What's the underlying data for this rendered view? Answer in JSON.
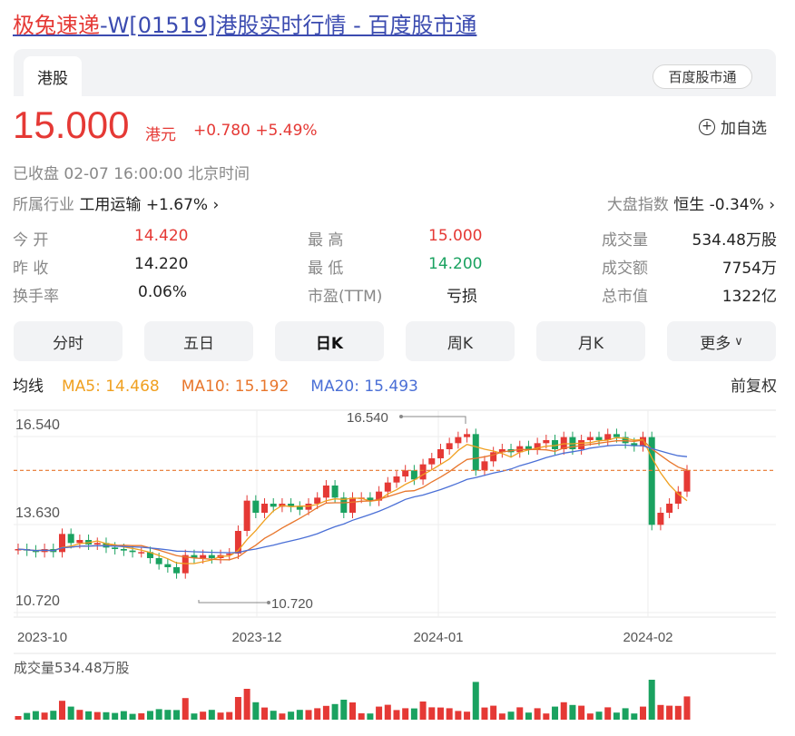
{
  "page": {
    "title_highlight": "极兔速递",
    "title_rest": "-W[01519]港股实时行情 - 百度股市通"
  },
  "tabs": {
    "active": "港股",
    "source_badge": "百度股市通"
  },
  "quote": {
    "price": "15.000",
    "unit": "港元",
    "change": "+0.780 +5.49%",
    "add_watchlist": "加自选",
    "status": "已收盘  02-07 16:00:00  北京时间"
  },
  "industry": {
    "label": "所属行业",
    "name": "工用运输",
    "change": "+1.67%"
  },
  "index": {
    "label": "大盘指数",
    "name": "恒生",
    "change": "-0.34%"
  },
  "stats": {
    "open_label": "今  开",
    "open": "14.420",
    "prev_label": "昨  收",
    "prev": "14.220",
    "turnover_label": "换手率",
    "turnover": "0.06%",
    "high_label": "最  高",
    "high": "15.000",
    "low_label": "最  低",
    "low": "14.200",
    "pe_label": "市盈(TTM)",
    "pe": "亏损",
    "vol_label": "成交量",
    "vol": "534.48万股",
    "amt_label": "成交额",
    "amt": "7754万",
    "cap_label": "总市值",
    "cap": "1322亿"
  },
  "period_tabs": [
    "分时",
    "五日",
    "日K",
    "周K",
    "月K",
    "更多"
  ],
  "active_period": "日K",
  "ma": {
    "label": "均线",
    "ma5": "MA5: 14.468",
    "ma10": "MA10: 15.192",
    "ma20": "MA20: 15.493",
    "adjust": "前复权"
  },
  "colors": {
    "up": "#e53935",
    "down": "#1aa260",
    "ma5": "#f0a020",
    "ma10": "#e8762c",
    "ma20": "#4a6fd6"
  },
  "chart_data": {
    "type": "candlestick",
    "y_ticks": [
      "16.540",
      "13.630",
      "10.720"
    ],
    "x_ticks": [
      "2023-10",
      "2023-12",
      "2024-01",
      "2024-02"
    ],
    "high_marker": "16.540",
    "low_marker": "10.720",
    "current_price": 15.0,
    "ylim": [
      10.72,
      16.54
    ],
    "closes": [
      12.4,
      12.35,
      12.3,
      12.4,
      12.3,
      12.9,
      12.6,
      12.7,
      12.55,
      12.6,
      12.45,
      12.4,
      12.35,
      12.3,
      12.3,
      12.1,
      11.9,
      11.8,
      11.6,
      12.2,
      12.1,
      12.2,
      12.1,
      12.2,
      12.25,
      13.0,
      14.0,
      13.6,
      13.9,
      13.8,
      13.9,
      13.8,
      13.7,
      13.9,
      14.1,
      14.5,
      14.1,
      13.6,
      14.1,
      14.1,
      14.0,
      14.3,
      14.6,
      14.8,
      15.0,
      14.7,
      15.2,
      15.4,
      15.7,
      15.9,
      16.1,
      16.2,
      15.0,
      15.3,
      15.6,
      15.7,
      15.6,
      15.8,
      15.7,
      15.9,
      16.0,
      15.7,
      16.1,
      15.7,
      16.0,
      16.1,
      16.0,
      16.2,
      16.1,
      15.9,
      15.8,
      16.1,
      13.2,
      13.6,
      13.9,
      14.3,
      15.0
    ],
    "volume_label": "成交量534.48万股"
  }
}
